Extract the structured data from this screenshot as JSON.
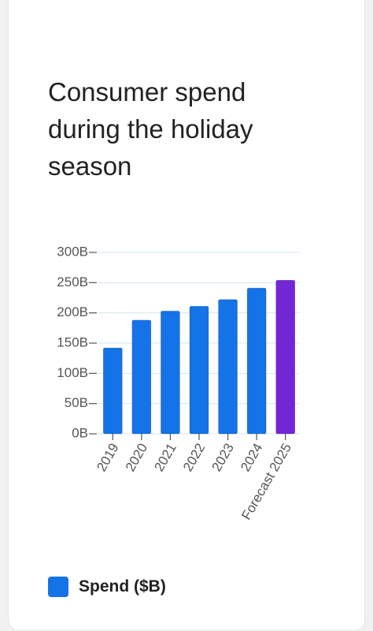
{
  "chart_data": {
    "type": "bar",
    "title": "Consumer spend during the holiday season",
    "categories": [
      "2019",
      "2020",
      "2021",
      "2022",
      "2023",
      "2024",
      "Forecast 2025"
    ],
    "series": [
      {
        "name": "Spend ($B)",
        "color": "#1473e6",
        "values": [
          142,
          188,
          203,
          211,
          222,
          241,
          254
        ]
      }
    ],
    "bar_colors": [
      "#1473e6",
      "#1473e6",
      "#1473e6",
      "#1473e6",
      "#1473e6",
      "#1473e6",
      "#7326d3"
    ],
    "ylim": [
      0,
      300
    ],
    "yticks": [
      {
        "value": 0,
        "label": "0B"
      },
      {
        "value": 50,
        "label": "50B"
      },
      {
        "value": 100,
        "label": "100B"
      },
      {
        "value": 150,
        "label": "150B"
      },
      {
        "value": 200,
        "label": "200B"
      },
      {
        "value": 250,
        "label": "250B"
      },
      {
        "value": 300,
        "label": "300B"
      }
    ],
    "grid": true
  }
}
